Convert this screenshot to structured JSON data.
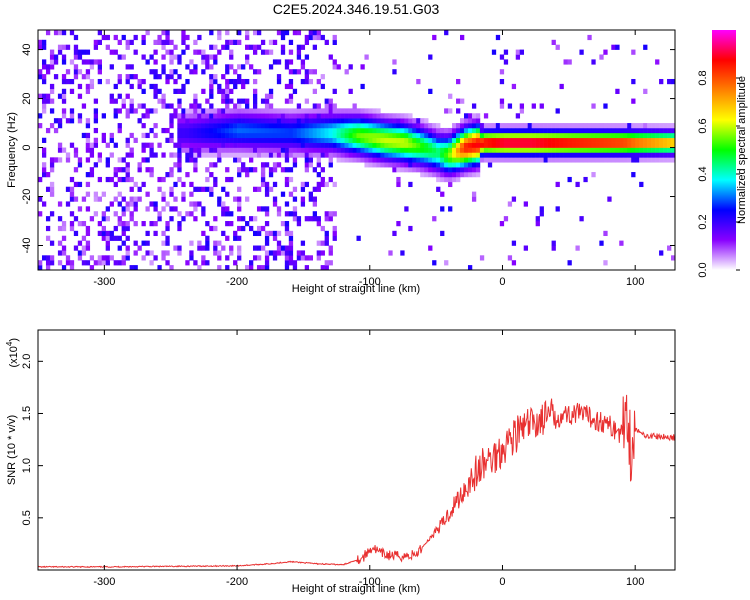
{
  "figure": {
    "title": "C2E5.2024.346.19.51.G03"
  },
  "chart_data": [
    {
      "type": "heatmap",
      "name": "spectrogram",
      "xlabel": "Height of straight line (km)",
      "ylabel": "Frequency (Hz)",
      "xlim": [
        -350,
        130
      ],
      "ylim": [
        -50,
        48
      ],
      "xticks": [
        -300,
        -200,
        -100,
        0,
        100
      ],
      "yticks": [
        -40,
        -20,
        0,
        20,
        40
      ],
      "grid": false,
      "ridge": {
        "x": [
          -240,
          -200,
          -160,
          -130,
          -110,
          -90,
          -75,
          -60,
          -50,
          -42,
          -30,
          -15,
          0,
          20,
          50,
          90,
          100,
          130
        ],
        "frequency": [
          5,
          6,
          5,
          5,
          4,
          2,
          1,
          -1,
          -3,
          -4,
          -1,
          1,
          1,
          1,
          1,
          1,
          1,
          1
        ],
        "peak_amplitude": [
          0.2,
          0.3,
          0.28,
          0.38,
          0.55,
          0.6,
          0.6,
          0.5,
          0.45,
          0.55,
          0.85,
          0.9,
          0.95,
          0.95,
          0.9,
          0.85,
          0.8,
          0.7
        ]
      },
      "colorbar": {
        "label": "Normalized spectral amplitude",
        "range": [
          0,
          1
        ],
        "ticks": [
          "0.0",
          "0.2",
          "0.4",
          "0.6",
          "0.8"
        ],
        "tick_values": [
          0,
          0.2,
          0.4,
          0.6,
          0.8
        ],
        "colors": [
          "#ffffff",
          "#8800ff",
          "#0000ff",
          "#00ffff",
          "#00ff00",
          "#ffff00",
          "#ff8000",
          "#ff0000",
          "#ff00ff"
        ]
      }
    },
    {
      "type": "line",
      "name": "snr",
      "xlabel": "Height of straight line (km)",
      "ylabel": "SNR (10 * v/v)",
      "scale_note": "(x10",
      "scale_exp": "4",
      "xlim": [
        -350,
        130
      ],
      "ylim": [
        0,
        2.3
      ],
      "xticks": [
        -300,
        -200,
        -100,
        0,
        100
      ],
      "yticks": [
        0.5,
        1.0,
        1.5,
        2.0
      ],
      "ytick_labels": [
        "0.5",
        "1.0",
        "1.5",
        "2.0"
      ],
      "grid": false,
      "series": [
        {
          "color": "#e83030",
          "x": [
            -350,
            -300,
            -250,
            -200,
            -175,
            -160,
            -140,
            -120,
            -105,
            -98,
            -92,
            -85,
            -75,
            -65,
            -55,
            -45,
            -35,
            -25,
            -15,
            -5,
            5,
            15,
            25,
            35,
            45,
            55,
            65,
            75,
            85,
            90,
            94,
            97,
            100,
            105,
            115,
            130
          ],
          "values": [
            0.03,
            0.03,
            0.035,
            0.04,
            0.06,
            0.08,
            0.06,
            0.05,
            0.12,
            0.22,
            0.16,
            0.14,
            0.13,
            0.15,
            0.3,
            0.45,
            0.65,
            0.85,
            1.0,
            1.1,
            1.25,
            1.35,
            1.42,
            1.47,
            1.48,
            1.5,
            1.47,
            1.42,
            1.35,
            1.3,
            1.6,
            1.1,
            1.35,
            1.3,
            1.28,
            1.27
          ]
        }
      ]
    }
  ]
}
